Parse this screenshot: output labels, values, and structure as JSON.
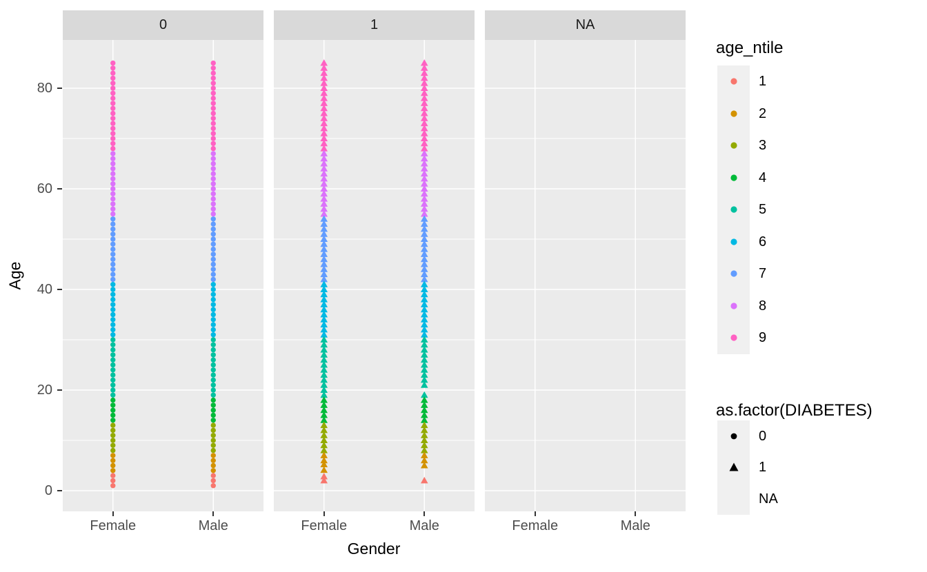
{
  "chart_data": {
    "type": "scatter",
    "description": "Faceted jitter-free scatter of Age by Gender, faceted by DIABETES status, colored by age_ntile, shaped by as.factor(DIABETES)",
    "facets": [
      "0",
      "1",
      "NA"
    ],
    "x_categories": [
      "Female",
      "Male"
    ],
    "xlabel": "Gender",
    "ylabel": "Age",
    "y_major_ticks": [
      0,
      20,
      40,
      60,
      80
    ],
    "y_minor_ticks": [
      10,
      30,
      50,
      70
    ],
    "ylim": [
      -4,
      89.5
    ],
    "age_range_of_data": [
      1,
      85
    ],
    "colors": {
      "panel_bg": "#EBEBEB",
      "strip_bg": "#D9D9D9",
      "strip_text": "#1A1A1A",
      "grid": "#FFFFFF",
      "tick_label": "#4D4D4D",
      "legend_key_bg": "#F0F0F0",
      "shape_legend_glyph": "#000000"
    },
    "age_ntile_bands": [
      {
        "ntile": "1",
        "age_min": 0,
        "age_max": 3.2,
        "color": "#F8766D"
      },
      {
        "ntile": "2",
        "age_min": 3.2,
        "age_max": 7.5,
        "color": "#D39200"
      },
      {
        "ntile": "3",
        "age_min": 7.5,
        "age_max": 13.5,
        "color": "#93AA00"
      },
      {
        "ntile": "4",
        "age_min": 13.5,
        "age_max": 18.5,
        "color": "#00BA38"
      },
      {
        "ntile": "5",
        "age_min": 18.5,
        "age_max": 30.5,
        "color": "#00C19F"
      },
      {
        "ntile": "6",
        "age_min": 30.5,
        "age_max": 41.5,
        "color": "#00B9E3"
      },
      {
        "ntile": "7",
        "age_min": 41.5,
        "age_max": 54.5,
        "color": "#619CFF"
      },
      {
        "ntile": "8",
        "age_min": 54.5,
        "age_max": 67.5,
        "color": "#DB72FB"
      },
      {
        "ntile": "9",
        "age_min": 67.5,
        "age_max": 86,
        "color": "#FF61C3"
      }
    ],
    "series": [
      {
        "facet": "0",
        "gender": "Female",
        "shape": "circle",
        "age_runs": [
          [
            1,
            85
          ]
        ],
        "age_points": []
      },
      {
        "facet": "0",
        "gender": "Male",
        "shape": "circle",
        "age_runs": [
          [
            1,
            85
          ]
        ],
        "age_points": []
      },
      {
        "facet": "1",
        "gender": "Female",
        "shape": "triangle",
        "age_runs": [
          [
            6,
            85
          ]
        ],
        "age_points": [
          5.2,
          4.1,
          2.8,
          2.0
        ]
      },
      {
        "facet": "1",
        "gender": "Male",
        "shape": "triangle",
        "age_runs": [
          [
            21,
            85
          ],
          [
            5,
            19
          ]
        ],
        "age_points": [
          2.0
        ]
      },
      {
        "facet": "NA",
        "gender": "Female",
        "shape": "none",
        "age_runs": [],
        "age_points": []
      },
      {
        "facet": "NA",
        "gender": "Male",
        "shape": "none",
        "age_runs": [],
        "age_points": []
      }
    ],
    "legends": [
      {
        "title": "age_ntile",
        "type": "color",
        "entries": [
          {
            "label": "1",
            "color": "#F8766D"
          },
          {
            "label": "2",
            "color": "#D39200"
          },
          {
            "label": "3",
            "color": "#93AA00"
          },
          {
            "label": "4",
            "color": "#00BA38"
          },
          {
            "label": "5",
            "color": "#00C19F"
          },
          {
            "label": "6",
            "color": "#00B9E3"
          },
          {
            "label": "7",
            "color": "#619CFF"
          },
          {
            "label": "8",
            "color": "#DB72FB"
          },
          {
            "label": "9",
            "color": "#FF61C3"
          }
        ]
      },
      {
        "title": "as.factor(DIABETES)",
        "type": "shape",
        "entries": [
          {
            "label": "0",
            "shape": "circle"
          },
          {
            "label": "1",
            "shape": "triangle"
          },
          {
            "label": "NA",
            "shape": "none"
          }
        ]
      }
    ]
  }
}
